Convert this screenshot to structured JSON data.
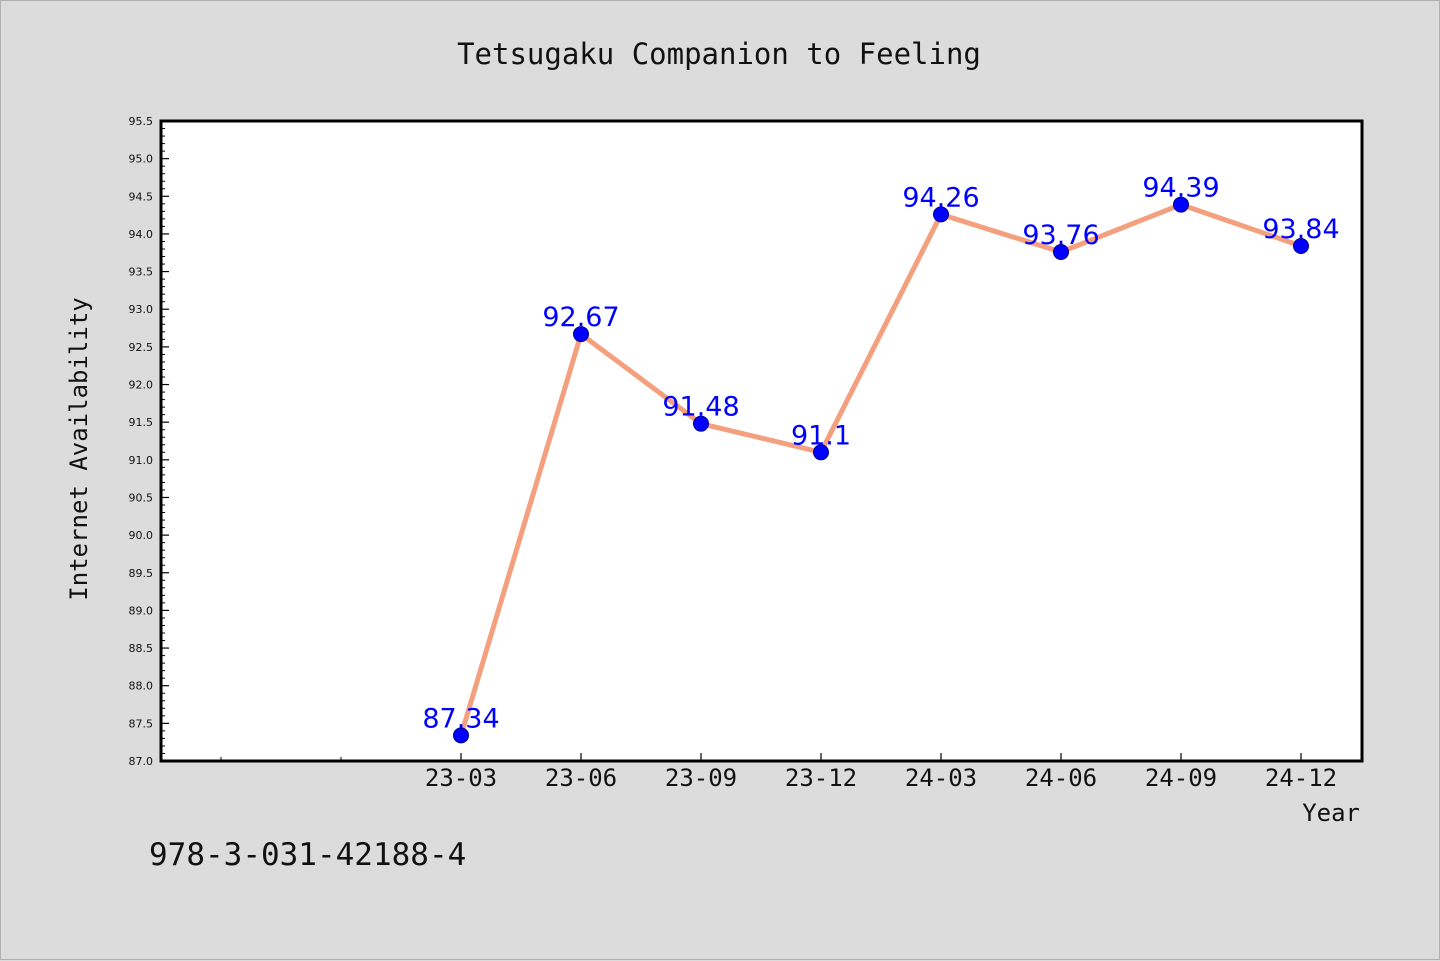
{
  "chart_data": {
    "type": "line",
    "title": "Tetsugaku Companion to Feeling",
    "xlabel": "Year",
    "ylabel": "Internet Availability",
    "categories": [
      "23-03",
      "23-06",
      "23-09",
      "23-12",
      "24-03",
      "24-06",
      "24-09",
      "24-12"
    ],
    "series": [
      {
        "values": [
          87.34,
          92.67,
          91.48,
          91.1,
          94.26,
          93.76,
          94.39,
          93.84
        ],
        "labels": [
          "87.34",
          "92.67",
          "91.48",
          "91.1",
          "94.26",
          "93.76",
          "94.39",
          "93.84"
        ]
      }
    ],
    "ylim": [
      87.0,
      95.5
    ],
    "yticks": [
      "87.0",
      "87.5",
      "88.0",
      "88.5",
      "89.0",
      "89.5",
      "90.0",
      "90.5",
      "91.0",
      "91.5",
      "92.0",
      "92.5",
      "93.0",
      "93.5",
      "94.0",
      "94.5",
      "95.0",
      "95.5"
    ],
    "grid": false,
    "colors": {
      "line": "#f4a07e",
      "marker": "#0000ff",
      "label": "#0000ff"
    }
  },
  "footer": {
    "isbn": "978-3-031-42188-4"
  }
}
